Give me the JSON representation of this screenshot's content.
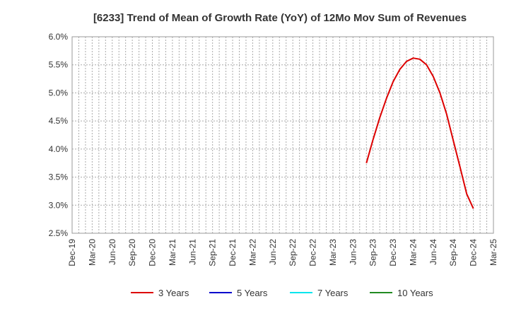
{
  "chart_data": {
    "type": "line",
    "title": "[6233]  Trend of Mean of Growth Rate (YoY) of 12Mo Mov Sum of Revenues",
    "xlabel": "",
    "ylabel": "",
    "ylim": [
      2.5,
      6.0
    ],
    "yticks": [
      2.5,
      3.0,
      3.5,
      4.0,
      4.5,
      5.0,
      5.5,
      6.0
    ],
    "ytick_labels": [
      "2.5%",
      "3.0%",
      "3.5%",
      "4.0%",
      "4.5%",
      "5.0%",
      "5.5%",
      "6.0%"
    ],
    "xticks": [
      "Dec-19",
      "Mar-20",
      "Jun-20",
      "Sep-20",
      "Dec-20",
      "Mar-21",
      "Jun-21",
      "Sep-21",
      "Dec-21",
      "Mar-22",
      "Jun-22",
      "Sep-22",
      "Dec-22",
      "Mar-23",
      "Jun-23",
      "Sep-23",
      "Dec-23",
      "Mar-24",
      "Jun-24",
      "Sep-24",
      "Dec-24",
      "Mar-25"
    ],
    "x_start": "2019-12",
    "x_end": "2025-03",
    "grid": true,
    "legend_position": "bottom",
    "series": [
      {
        "name": "3 Years",
        "color": "#dd0000",
        "x": [
          "2023-08",
          "2023-09",
          "2023-10",
          "2023-11",
          "2023-12",
          "2024-01",
          "2024-02",
          "2024-03",
          "2024-04",
          "2024-05",
          "2024-06",
          "2024-07",
          "2024-08",
          "2024-09",
          "2024-10",
          "2024-11",
          "2024-12"
        ],
        "values": [
          3.75,
          4.17,
          4.56,
          4.9,
          5.2,
          5.42,
          5.56,
          5.62,
          5.6,
          5.5,
          5.29,
          5.0,
          4.62,
          4.15,
          3.68,
          3.2,
          2.94
        ]
      },
      {
        "name": "5 Years",
        "color": "#0000cc",
        "x": [],
        "values": []
      },
      {
        "name": "7 Years",
        "color": "#00e5ee",
        "x": [],
        "values": []
      },
      {
        "name": "10 Years",
        "color": "#228b22",
        "x": [],
        "values": []
      }
    ]
  }
}
